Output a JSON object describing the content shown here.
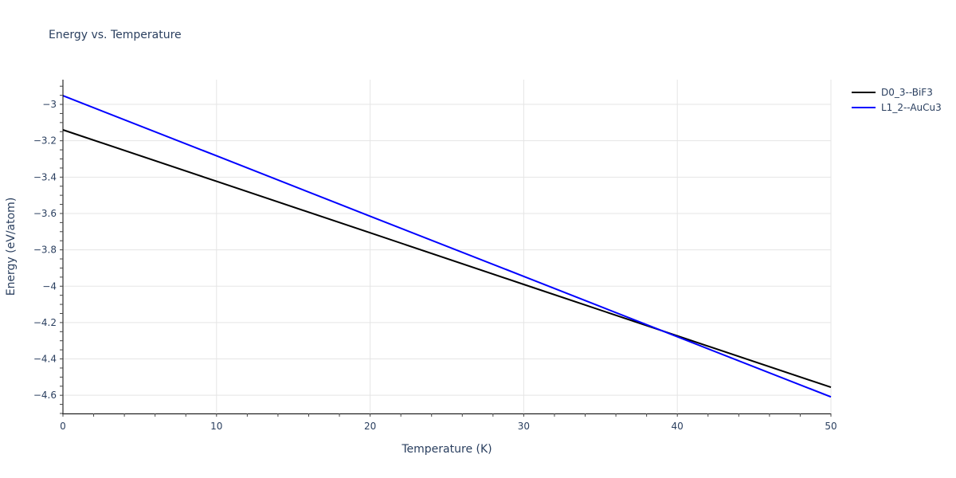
{
  "chart": {
    "title": "Energy vs. Temperature",
    "xlabel": "Temperature (K)",
    "ylabel": "Energy (eV/atom)"
  },
  "legend": {
    "items": [
      {
        "label": "D0_3--BiF3",
        "color": "#000000"
      },
      {
        "label": "L1_2--AuCu3",
        "color": "#0000ff"
      }
    ]
  },
  "chart_data": {
    "type": "line",
    "title": "Energy vs. Temperature",
    "xlabel": "Temperature (K)",
    "ylabel": "Energy (eV/atom)",
    "xlim": [
      0,
      50
    ],
    "ylim": [
      -4.7,
      -2.864
    ],
    "x_ticks": [
      0,
      10,
      20,
      30,
      40,
      50
    ],
    "y_ticks": [
      -3,
      -3.2,
      -3.4,
      -3.6,
      -3.8,
      -4,
      -4.2,
      -4.4,
      -4.6
    ],
    "y_tick_labels": [
      "−3",
      "−3.2",
      "−3.4",
      "−3.6",
      "−3.8",
      "−4",
      "−4.2",
      "−4.4",
      "−4.6"
    ],
    "grid": true,
    "legend_position": "top-right, outside plot",
    "x": [
      0,
      10,
      20,
      30,
      40,
      50
    ],
    "series": [
      {
        "name": "D0_3--BiF3",
        "color": "#000000",
        "values": [
          -3.14,
          -3.423,
          -3.706,
          -3.99,
          -4.273,
          -4.556
        ]
      },
      {
        "name": "L1_2--AuCu3",
        "color": "#0000ff",
        "values": [
          -2.952,
          -3.283,
          -3.615,
          -3.946,
          -4.278,
          -4.609
        ]
      }
    ]
  },
  "colors": {
    "text": "#2a3f5f",
    "grid": "#e5e5e5",
    "axis": "#000000"
  }
}
